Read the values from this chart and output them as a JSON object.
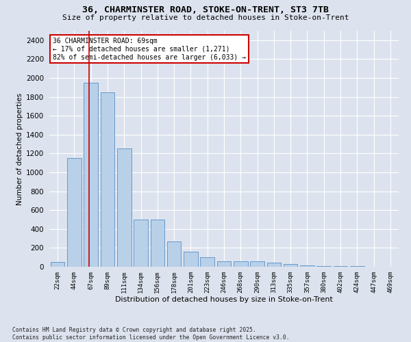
{
  "title_line1": "36, CHARMINSTER ROAD, STOKE-ON-TRENT, ST3 7TB",
  "title_line2": "Size of property relative to detached houses in Stoke-on-Trent",
  "xlabel": "Distribution of detached houses by size in Stoke-on-Trent",
  "ylabel": "Number of detached properties",
  "categories": [
    "22sqm",
    "44sqm",
    "67sqm",
    "89sqm",
    "111sqm",
    "134sqm",
    "156sqm",
    "178sqm",
    "201sqm",
    "223sqm",
    "246sqm",
    "268sqm",
    "290sqm",
    "313sqm",
    "335sqm",
    "357sqm",
    "380sqm",
    "402sqm",
    "424sqm",
    "447sqm",
    "469sqm"
  ],
  "values": [
    50,
    1150,
    1950,
    1850,
    1250,
    500,
    500,
    270,
    160,
    100,
    60,
    60,
    55,
    45,
    30,
    15,
    10,
    5,
    5,
    3,
    3
  ],
  "bar_color": "#b8d0e8",
  "bar_edge_color": "#6699cc",
  "bg_color": "#dde3ee",
  "grid_color": "#ffffff",
  "annotation_text_line1": "36 CHARMINSTER ROAD: 69sqm",
  "annotation_text_line2": "← 17% of detached houses are smaller (1,271)",
  "annotation_text_line3": "82% of semi-detached houses are larger (6,033) →",
  "vline_x_index": 1.87,
  "vline_color": "#cc0000",
  "ylim": [
    0,
    2500
  ],
  "yticks": [
    0,
    200,
    400,
    600,
    800,
    1000,
    1200,
    1400,
    1600,
    1800,
    2000,
    2200,
    2400
  ],
  "footer_line1": "Contains HM Land Registry data © Crown copyright and database right 2025.",
  "footer_line2": "Contains public sector information licensed under the Open Government Licence v3.0."
}
